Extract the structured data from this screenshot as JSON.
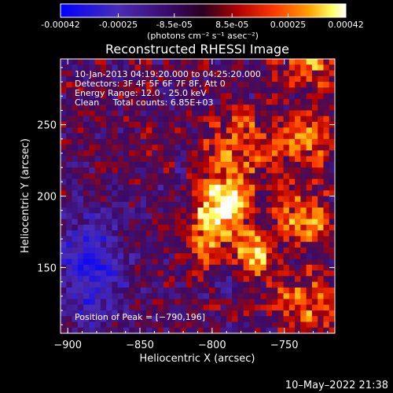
{
  "chart_data": {
    "type": "heatmap",
    "title": "Reconstructed RHESSI Image",
    "colorbar": {
      "tick_labels": [
        "-0.00042",
        "-0.00025",
        "-8.5e-05",
        "8.5e-05",
        "0.00025",
        "0.00042"
      ],
      "tick_values": [
        -0.00042,
        -0.00025,
        -8.5e-05,
        8.5e-05,
        0.00025,
        0.00042
      ],
      "range": [
        -0.00042,
        0.00042
      ],
      "units": "(photons cm⁻² s⁻¹ asec⁻²)",
      "colors": [
        "#0000ff",
        "#5a2aa0",
        "#3a0060",
        "#5a0030",
        "#c80000",
        "#ff5000",
        "#ffa000",
        "#ffff60",
        "#ffffff"
      ]
    },
    "xlabel": "Heliocentric X (arcsec)",
    "ylabel": "Heliocentric Y (arcsec)",
    "xlim": [
      -905,
      -715
    ],
    "ylim": [
      104,
      296
    ],
    "xticks": [
      -900,
      -850,
      -800,
      -750
    ],
    "xtick_labels": [
      "−900",
      "−850",
      "−800",
      "−750"
    ],
    "yticks": [
      150,
      200,
      250
    ],
    "ytick_labels": [
      "150",
      "200",
      "250"
    ],
    "info_lines": [
      "10-Jan-2013 04:19:20.000 to 04:25:20.000",
      "Detectors: 3F 4F 5F 6F 7F 8F, Att 0",
      "Energy Range: 12.0 - 25.0 keV",
      "Clean     Total counts: 6.85E+03"
    ],
    "peak_label": "Position of Peak = [−790,196]",
    "peak_position": [
      -790,
      196
    ],
    "timestamp": "10–May–2022 21:38"
  }
}
